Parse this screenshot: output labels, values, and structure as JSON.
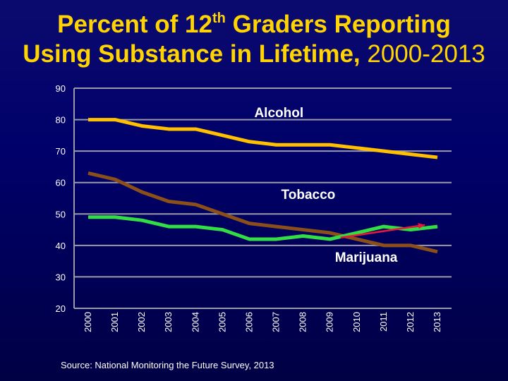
{
  "title": {
    "line1_pre": "Percent of 12",
    "line1_sup": "th",
    "line1_post": " Graders Reporting",
    "line2_bold": "Using Substance in Lifetime,",
    "line2_years": " 2000-2013"
  },
  "source": "Source: National Monitoring the Future Survey, 2013",
  "chart_data": {
    "type": "line",
    "x": [
      "2000",
      "2001",
      "2002",
      "2003",
      "2004",
      "2005",
      "2006",
      "2007",
      "2008",
      "2009",
      "2010",
      "2011",
      "2012",
      "2013"
    ],
    "ylim": [
      20,
      90
    ],
    "yticks": [
      20,
      30,
      40,
      50,
      60,
      70,
      80,
      90
    ],
    "grid": true,
    "series": [
      {
        "name": "Alcohol",
        "color": "#ffc000",
        "values": [
          80,
          80,
          78,
          77,
          77,
          75,
          73,
          72,
          72,
          72,
          71,
          70,
          69,
          68
        ]
      },
      {
        "name": "Tobacco",
        "color": "#8b4f1a",
        "values": [
          63,
          61,
          57,
          54,
          53,
          50,
          47,
          46,
          45,
          44,
          42,
          40,
          40,
          38
        ]
      },
      {
        "name": "Marijuana",
        "color": "#33dd44",
        "values": [
          49,
          49,
          48,
          46,
          46,
          45,
          42,
          42,
          43,
          42,
          44,
          46,
          45,
          46
        ]
      }
    ],
    "annotations": [
      {
        "text": "Alcohol",
        "at_x": "2006",
        "at_y": 80.8
      },
      {
        "text": "Tobacco",
        "at_x": "2007",
        "at_y": 54.8
      },
      {
        "text": "Marijuana",
        "at_x": "2009",
        "at_y": 34.8
      }
    ],
    "arrow": {
      "color": "#e8183c",
      "from": [
        "2009",
        42.5
      ],
      "to": [
        "2012",
        46.5
      ]
    }
  }
}
